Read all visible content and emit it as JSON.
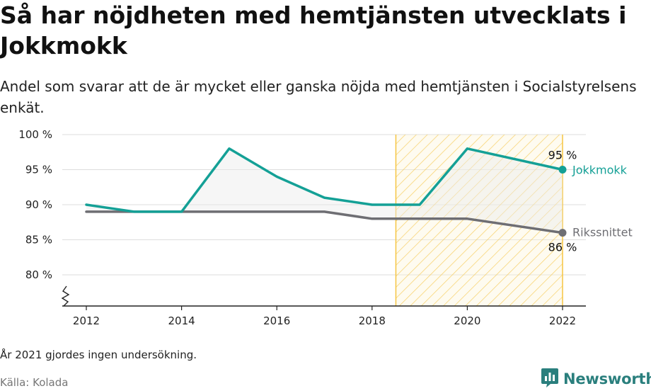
{
  "title": "Så har nöjdheten med hemtjänsten utvecklats i Jokkmokk",
  "subtitle": "Andel som svarar att de är mycket eller ganska nöjda med hemtjänsten i Socialstyrelsens enkät.",
  "note": "År 2021 gjordes ingen undersökning.",
  "source": "Källa: Kolada",
  "brand": {
    "name": "Newsworthy",
    "icon": "newsworthy-logo-icon"
  },
  "colors": {
    "jokkmokk": "#14a096",
    "riks": "#6e6e73",
    "highlight": "#f5c542",
    "grid": "#dddddd"
  },
  "chart_data": {
    "type": "line",
    "x": [
      2012,
      2013,
      2014,
      2015,
      2016,
      2017,
      2018,
      2019,
      2020,
      2022
    ],
    "series": [
      {
        "name": "Jokkmokk",
        "values": [
          90,
          89,
          89,
          98,
          94,
          91,
          90,
          90,
          98,
          95
        ]
      },
      {
        "name": "Rikssnittet",
        "values": [
          89,
          89,
          89,
          89,
          89,
          89,
          88,
          88,
          88,
          86
        ]
      }
    ],
    "end_labels": [
      "95 %",
      "86 %"
    ],
    "xticks": [
      2012,
      2014,
      2016,
      2018,
      2020,
      2022
    ],
    "xtick_labels": [
      "2012",
      "2014",
      "2016",
      "2018",
      "2020",
      "2022"
    ],
    "yticks": [
      80,
      85,
      90,
      95,
      100
    ],
    "ytick_labels": [
      "80 %",
      "85 %",
      "90 %",
      "95 %",
      "100 %"
    ],
    "ylim": [
      76,
      100
    ],
    "xlim": [
      2011.5,
      2022.5
    ],
    "highlight_range": [
      2018.5,
      2022
    ],
    "axis_break": true,
    "grid": true,
    "xlabel": "",
    "ylabel": ""
  }
}
